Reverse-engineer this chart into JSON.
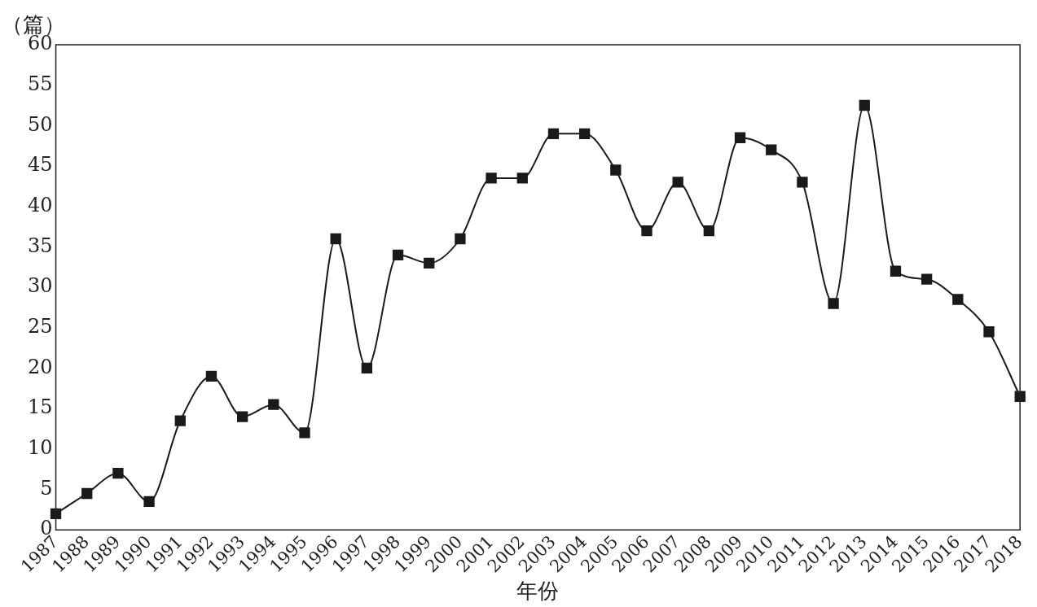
{
  "chart_data": {
    "type": "line",
    "ylabel": "（篇）",
    "xlabel": "年份",
    "categories": [
      "1987",
      "1988",
      "1989",
      "1990",
      "1991",
      "1992",
      "1993",
      "1994",
      "1995",
      "1996",
      "1997",
      "1998",
      "1999",
      "2000",
      "2001",
      "2002",
      "2003",
      "2004",
      "2005",
      "2006",
      "2007",
      "2008",
      "2009",
      "2010",
      "2011",
      "2012",
      "2013",
      "2014",
      "2015",
      "2016",
      "2017",
      "2018"
    ],
    "series": [
      {
        "color": "#1a1a1a",
        "values": [
          2,
          4.5,
          7,
          3.5,
          13.5,
          19,
          14,
          15.5,
          12,
          36,
          20,
          34,
          33,
          36,
          43.5,
          43.5,
          49,
          49,
          44.5,
          37,
          43,
          37,
          48.5,
          47,
          43,
          28,
          52.5,
          32,
          31,
          28.5,
          24.5,
          16.5
        ]
      }
    ],
    "ylim": [
      0,
      60
    ],
    "yticks": [
      0,
      5,
      10,
      15,
      20,
      25,
      30,
      35,
      40,
      45,
      50,
      55,
      60
    ],
    "grid": false,
    "legend": false,
    "marker": "square",
    "line_style": "solid"
  }
}
